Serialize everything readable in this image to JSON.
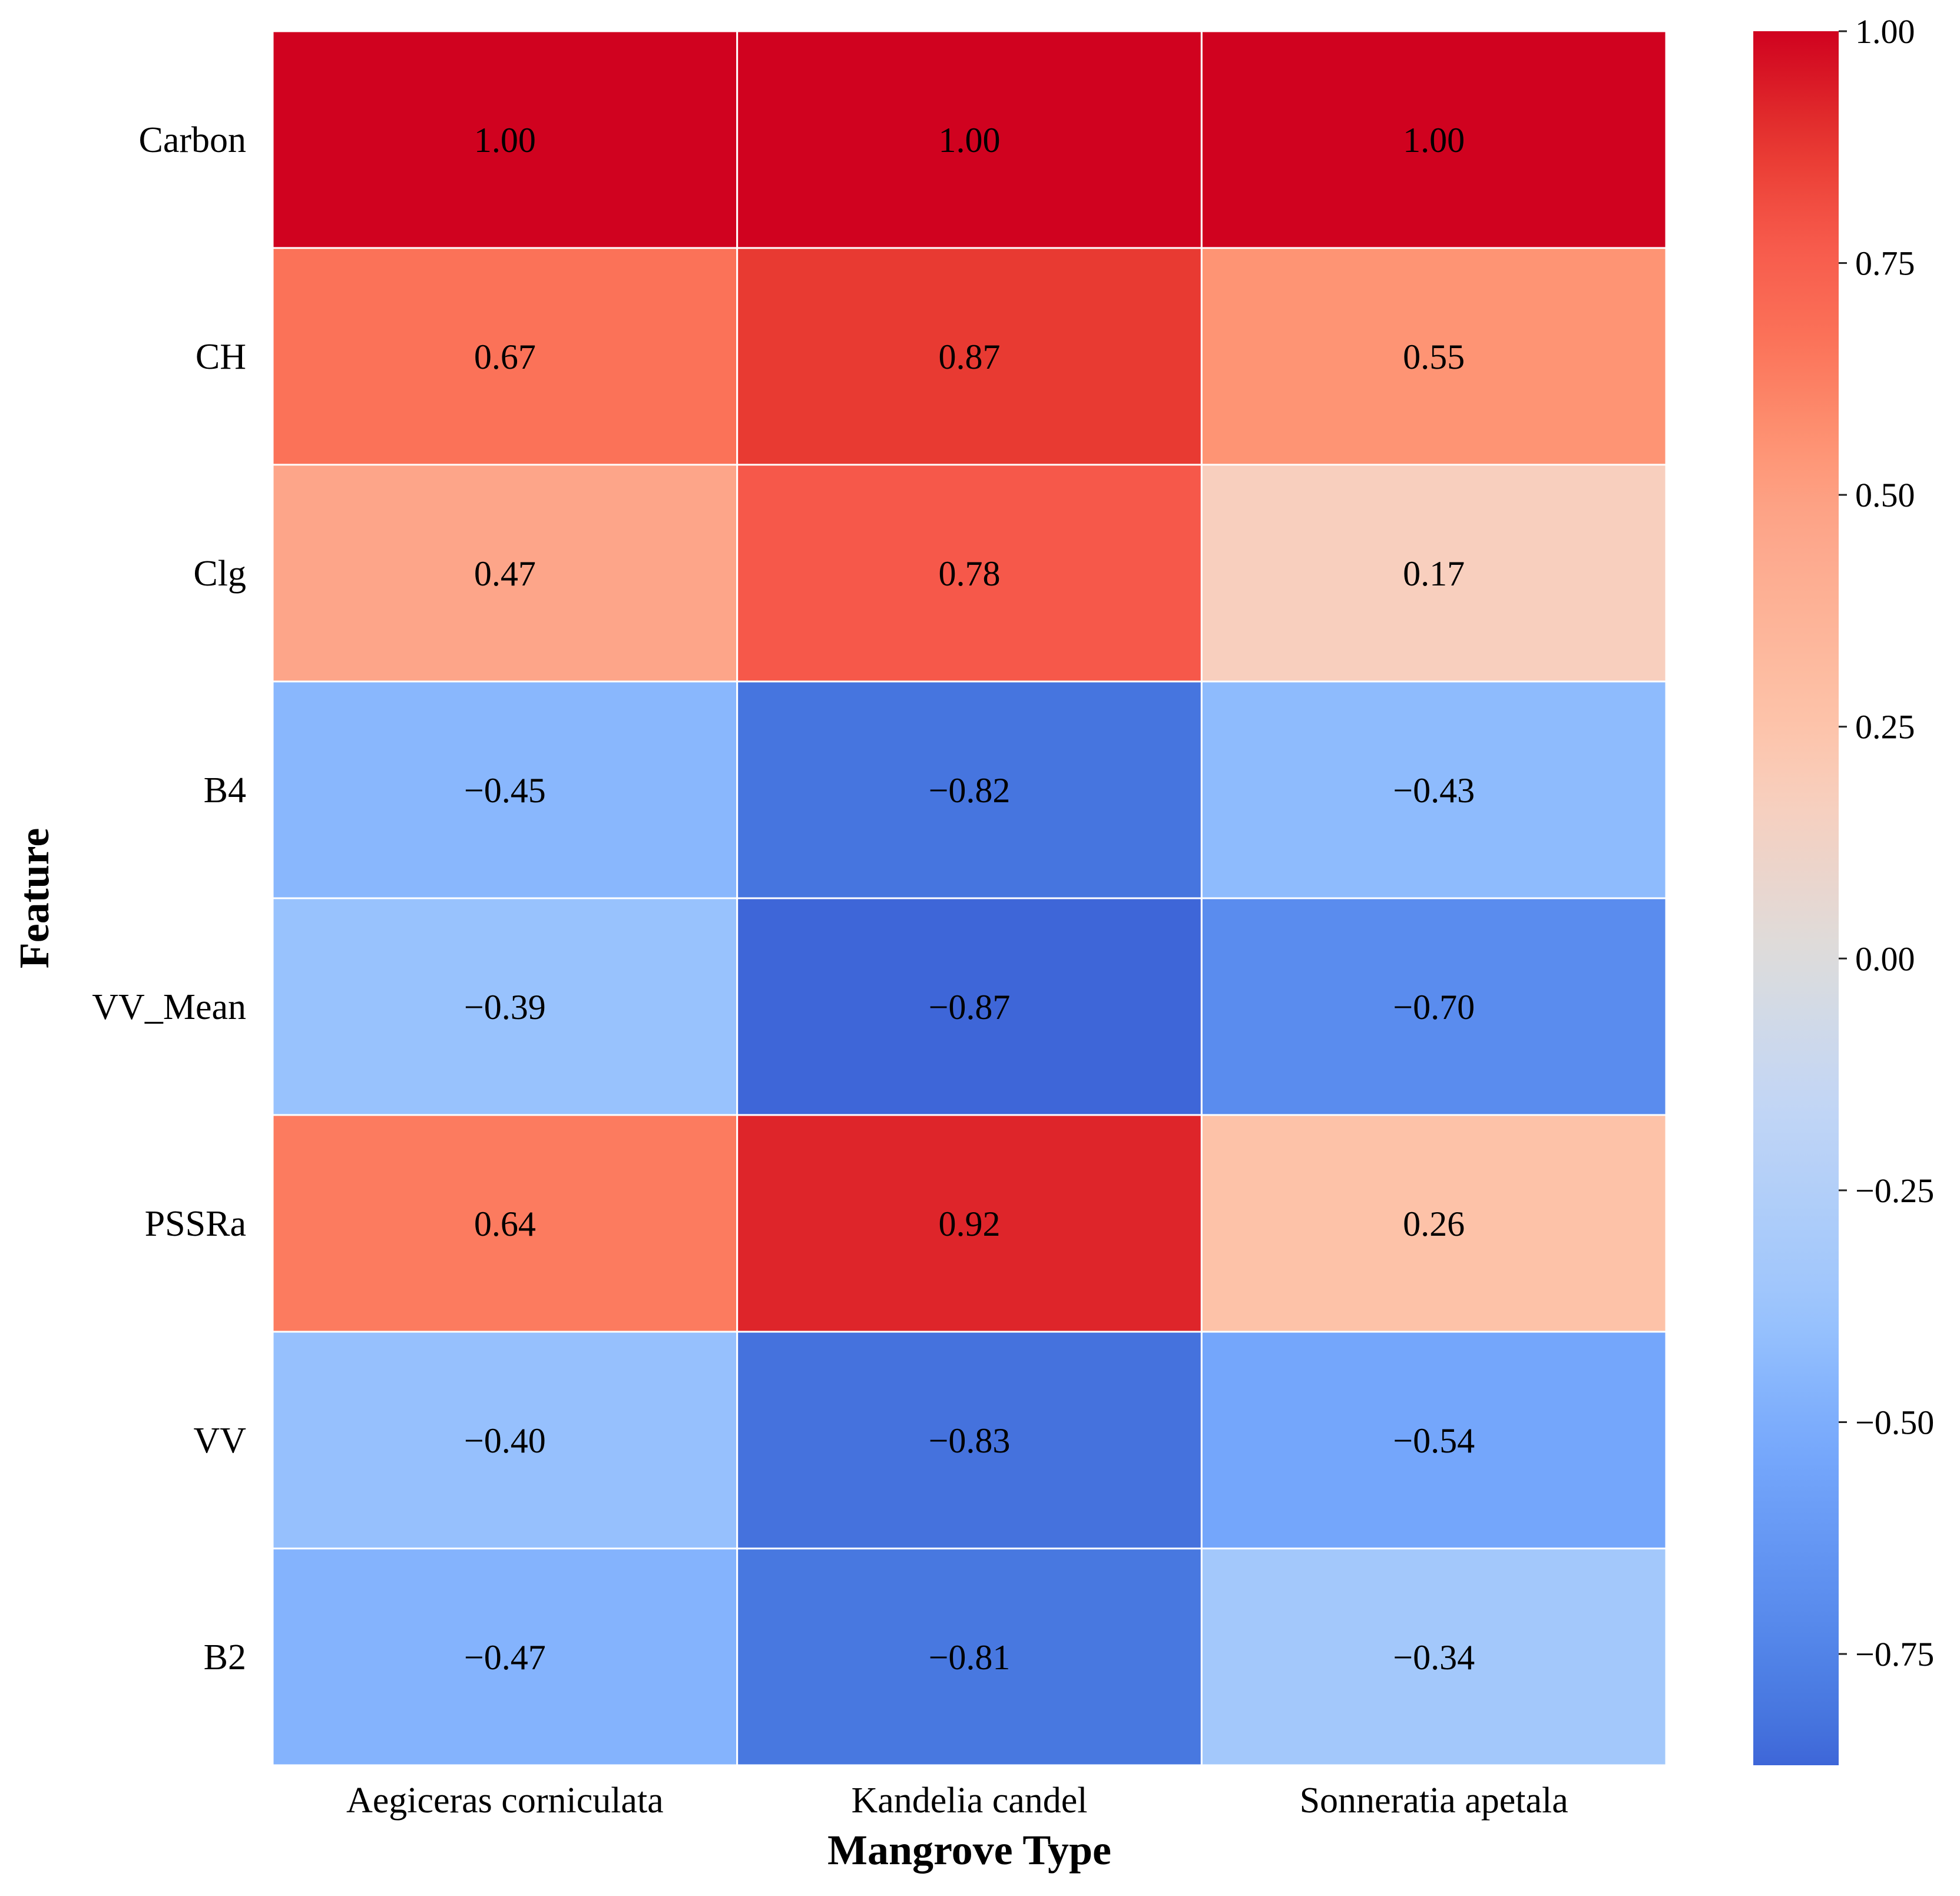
{
  "chart_data": {
    "type": "heatmap",
    "title": "",
    "xlabel": "Mangrove Type",
    "ylabel": "Feature",
    "columns": [
      "Aegiceras corniculata",
      "Kandelia candel",
      "Sonneratia apetala"
    ],
    "rows": [
      "Carbon",
      "CH",
      "Clg",
      "B4",
      "VV_Mean",
      "PSSRa",
      "VV",
      "B2"
    ],
    "values": [
      [
        1.0,
        1.0,
        1.0
      ],
      [
        0.67,
        0.87,
        0.55
      ],
      [
        0.47,
        0.78,
        0.17
      ],
      [
        -0.45,
        -0.82,
        -0.43
      ],
      [
        -0.39,
        -0.87,
        -0.7
      ],
      [
        0.64,
        0.92,
        0.26
      ],
      [
        -0.4,
        -0.83,
        -0.54
      ],
      [
        -0.47,
        -0.81,
        -0.34
      ]
    ],
    "colormap": "coolwarm",
    "vmin": -0.87,
    "vmax": 1.0,
    "colorbar": {
      "ticks": [
        1.0,
        0.75,
        0.5,
        0.25,
        0.0,
        -0.25,
        -0.5,
        -0.75
      ],
      "tick_labels": [
        "1.00",
        "0.75",
        "0.50",
        "0.25",
        "0.00",
        "−0.25",
        "−0.50",
        "−0.75"
      ]
    },
    "annotation_format": "2f",
    "cell_border_color": "#ffffff"
  }
}
